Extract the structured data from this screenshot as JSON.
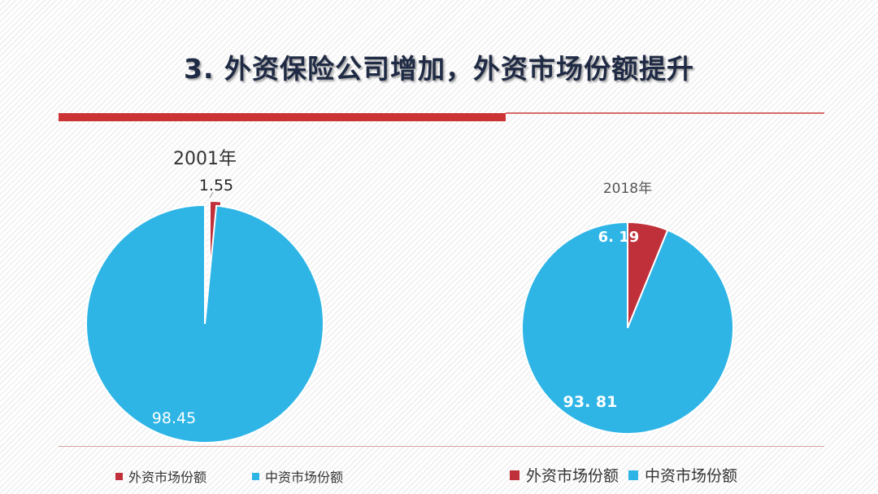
{
  "slide": {
    "title": "3. 外资保险公司增加，外资市场份额提升"
  },
  "chart_data": [
    {
      "type": "pie",
      "title": "2001年",
      "categories": [
        "外资市场份额",
        "中资市场份额"
      ],
      "values": [
        1.55,
        98.45
      ],
      "labels": [
        "1.55",
        "98.45"
      ],
      "colors": [
        "#c0303a",
        "#2eb5e6"
      ],
      "legend": "bottom"
    },
    {
      "type": "pie",
      "title": "2018年",
      "categories": [
        "外资市场份额",
        "中资市场份额"
      ],
      "values": [
        6.19,
        93.81
      ],
      "labels": [
        "6. 19",
        "93. 81"
      ],
      "colors": [
        "#c0303a",
        "#2eb5e6"
      ],
      "legend": "bottom"
    }
  ]
}
